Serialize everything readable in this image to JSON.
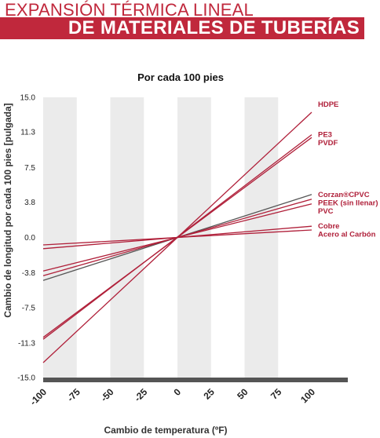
{
  "header": {
    "line1": "EXPANSIÓN TÉRMICA LINEAL",
    "line2": "DE MATERIALES DE TUBERÍAS"
  },
  "colors": {
    "brand": "#c0283c",
    "series": "#b0203a",
    "series_alt": "#555555",
    "band": "#ebebeb",
    "baseline": "#555555"
  },
  "chart_data": {
    "type": "line",
    "title": "Por cada 100 pies",
    "xlabel": "Cambio de temperatura (ºF)",
    "ylabel": "Cambio de longitud por cada 100 pies [pulgada]",
    "xlim": [
      -100,
      100
    ],
    "ylim": [
      -15.0,
      15.0
    ],
    "x_ticks": [
      "-100",
      "-75",
      "-50",
      "-25",
      "0",
      "25",
      "50",
      "75",
      "100"
    ],
    "y_ticks": [
      "15.0",
      "11.3",
      "7.5",
      "3.8",
      "0.0",
      "-3.8",
      "-7.5",
      "-11.3",
      "-15.0"
    ],
    "grid": "alternating vertical bands",
    "legend": "labels at right end of lines",
    "series": [
      {
        "name": "HDPE",
        "x": [
          -100,
          100
        ],
        "y": [
          -13.4,
          13.4
        ],
        "color": "#b0203a"
      },
      {
        "name": "PE3",
        "x": [
          -100,
          100
        ],
        "y": [
          -10.9,
          11.0
        ],
        "color": "#b0203a"
      },
      {
        "name": "PVDF",
        "x": [
          -100,
          100
        ],
        "y": [
          -10.7,
          10.7
        ],
        "color": "#b0203a"
      },
      {
        "name": "Corzan®CPVC",
        "x": [
          -100,
          100
        ],
        "y": [
          -4.6,
          4.6
        ],
        "color": "#555555"
      },
      {
        "name": "PEEK (sin llenar)",
        "x": [
          -100,
          100
        ],
        "y": [
          -4.1,
          4.1
        ],
        "color": "#b0203a"
      },
      {
        "name": "PVC",
        "x": [
          -100,
          100
        ],
        "y": [
          -3.6,
          3.6
        ],
        "color": "#b0203a"
      },
      {
        "name": "Cobre",
        "x": [
          -100,
          100
        ],
        "y": [
          -1.2,
          1.2
        ],
        "color": "#b0203a"
      },
      {
        "name": "Acero al Carbón",
        "x": [
          -100,
          100
        ],
        "y": [
          -0.8,
          0.8
        ],
        "color": "#b0203a"
      }
    ]
  }
}
